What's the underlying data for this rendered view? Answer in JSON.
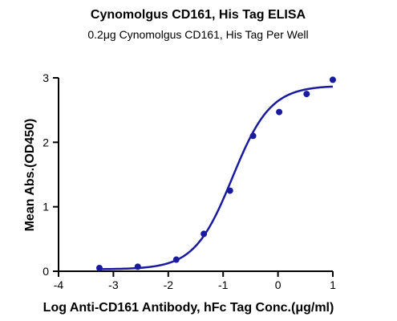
{
  "chart_data": {
    "type": "scatter",
    "title": "Cynomolgus CD161, His Tag ELISA",
    "subtitle": "0.2μg Cynomolgus CD161, His Tag Per Well",
    "xlabel": "Log Anti-CD161 Antibody, hFc Tag Conc.(μg/ml)",
    "ylabel": "Mean Abs.(OD450)",
    "xlim": [
      -4,
      1
    ],
    "ylim": [
      0,
      3
    ],
    "xticks": [
      -4,
      -3,
      -2,
      -1,
      0,
      1
    ],
    "yticks": [
      0,
      1,
      2,
      3
    ],
    "grid": false,
    "series": [
      {
        "x": [
          -3.255,
          -2.556,
          -1.854,
          -1.352,
          -0.875,
          -0.454,
          0.022,
          0.522,
          0.999
        ],
        "y": [
          0.05,
          0.07,
          0.18,
          0.58,
          1.25,
          2.1,
          2.47,
          2.75,
          2.97
        ],
        "fit": {
          "model": "4PL",
          "bottom": 0.03,
          "top": 2.88,
          "log_ec50": -0.83,
          "hill": 1.25
        }
      }
    ],
    "colors": {
      "series": "#1A1A9E",
      "axis": "#000000"
    }
  }
}
